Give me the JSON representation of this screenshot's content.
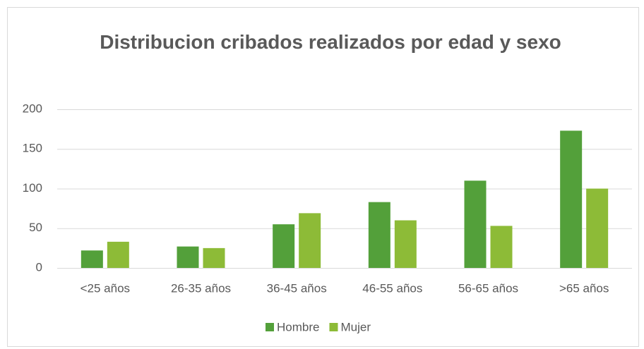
{
  "chart_data": {
    "type": "bar",
    "title": "Distribucion cribados realizados por edad y sexo",
    "categories": [
      "<25 años",
      "26-35 años",
      "36-45 años",
      "46-55 años",
      "56-65 años",
      ">65 años"
    ],
    "series": [
      {
        "name": "Hombre",
        "color": "#53a03a",
        "values": [
          22,
          27,
          55,
          83,
          110,
          173
        ]
      },
      {
        "name": "Mujer",
        "color": "#8dbb37",
        "values": [
          33,
          25,
          69,
          60,
          53,
          100
        ]
      }
    ],
    "ylim": [
      0,
      200
    ],
    "yticks": [
      0,
      50,
      100,
      150,
      200
    ],
    "grid": true,
    "legend": "bottom"
  }
}
